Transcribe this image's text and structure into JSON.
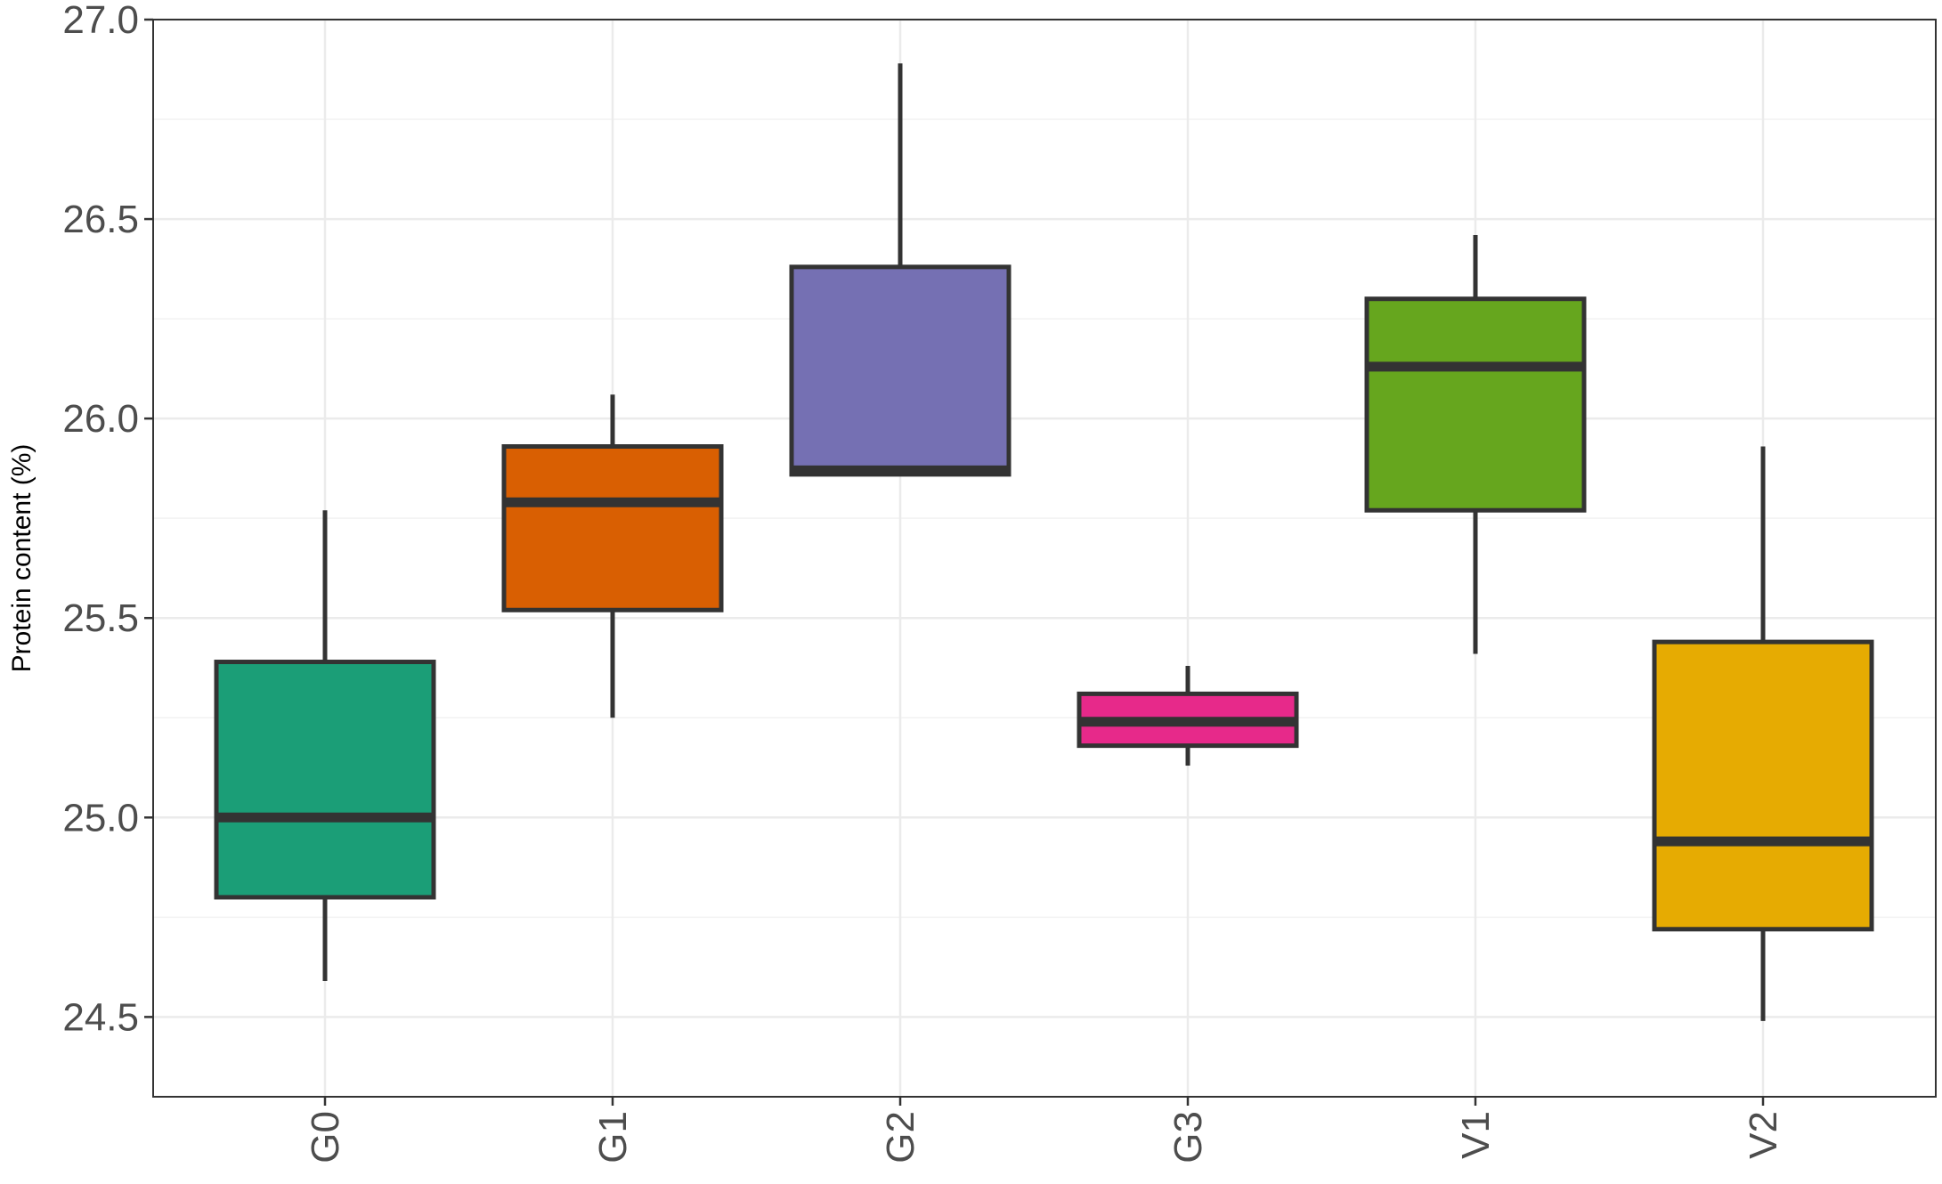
{
  "chart_data": {
    "type": "boxplot",
    "title": "",
    "xlabel": "",
    "ylabel": "Protein content (%)",
    "ylim": [
      24.3,
      27.0
    ],
    "yticks": [
      24.5,
      25.0,
      25.5,
      26.0,
      26.5,
      27.0
    ],
    "ytick_labels": [
      "24.5",
      "25.0",
      "25.5",
      "26.0",
      "26.5",
      "27.0"
    ],
    "grid": true,
    "legend": "none",
    "categories": [
      "G0",
      "G1",
      "G2",
      "G3",
      "V1",
      "V2"
    ],
    "boxes": [
      {
        "label": "G0",
        "min": 24.59,
        "q1": 24.8,
        "median": 25.0,
        "q3": 25.39,
        "max": 25.77,
        "color": "#1b9e77"
      },
      {
        "label": "G1",
        "min": 25.25,
        "q1": 25.52,
        "median": 25.79,
        "q3": 25.93,
        "max": 26.06,
        "color": "#d95f02"
      },
      {
        "label": "G2",
        "min": 25.86,
        "q1": 25.86,
        "median": 25.87,
        "q3": 26.38,
        "max": 26.89,
        "color": "#7570b3"
      },
      {
        "label": "G3",
        "min": 25.13,
        "q1": 25.18,
        "median": 25.24,
        "q3": 25.31,
        "max": 25.38,
        "color": "#e7298a"
      },
      {
        "label": "V1",
        "min": 25.41,
        "q1": 25.77,
        "median": 26.13,
        "q3": 26.3,
        "max": 26.46,
        "color": "#66a61e"
      },
      {
        "label": "V2",
        "min": 24.49,
        "q1": 24.72,
        "median": 24.94,
        "q3": 25.44,
        "max": 25.93,
        "color": "#e6ab02"
      }
    ]
  }
}
